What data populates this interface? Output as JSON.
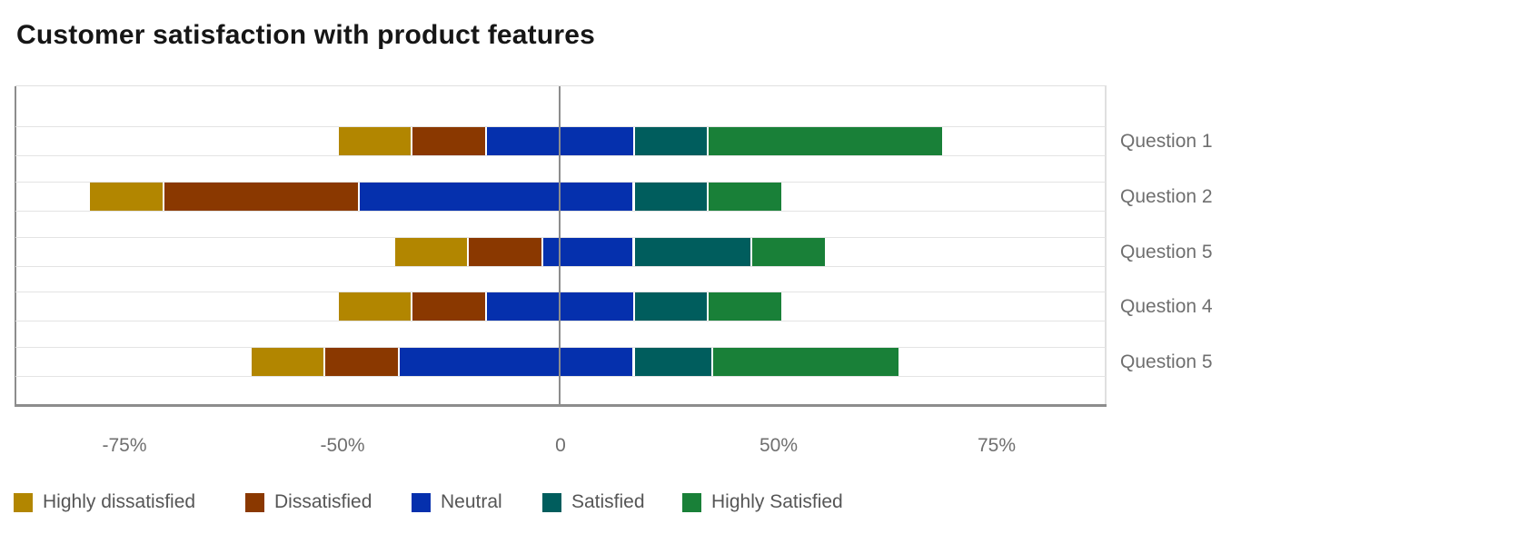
{
  "title": "Customer satisfaction with product features",
  "chart_data": {
    "type": "bar",
    "subtype": "horizontal_diverging_stacked",
    "title": "Customer satisfaction with product features",
    "unit": "percent",
    "categories": [
      {
        "label": "Highly dissatisfied",
        "color": "#b28600"
      },
      {
        "label": "Dissatisfied",
        "color": "#8a3800"
      },
      {
        "label": "Neutral",
        "color": "#0530ad"
      },
      {
        "label": "Satisfied",
        "color": "#005d5d"
      },
      {
        "label": "Highly Satisfied",
        "color": "#198038"
      }
    ],
    "rows": [
      {
        "label": "Question 1",
        "start": -51,
        "values": [
          17,
          17,
          34,
          17,
          54
        ]
      },
      {
        "label": "Question 2",
        "start": -108,
        "values": [
          17,
          45,
          63,
          17,
          17
        ]
      },
      {
        "label": "Question 5",
        "start": -38,
        "values": [
          17,
          17,
          21,
          27,
          17
        ]
      },
      {
        "label": "Question 4",
        "start": -51,
        "values": [
          17,
          17,
          34,
          17,
          17
        ]
      },
      {
        "label": "Question 5",
        "start": -71,
        "values": [
          17,
          17,
          54,
          18,
          43
        ]
      }
    ],
    "x_axis": {
      "tick_labels": [
        "-75%",
        "-50%",
        "0",
        "50%",
        "75%"
      ],
      "ticks_equally_spaced": true,
      "zero_reference_line": true
    },
    "legend_position": "bottom",
    "grid": "row-band-lines",
    "colors": {
      "title_text": "#161616",
      "axis_strong": "#8d8d8d",
      "axis_light": "#e0e0e0",
      "tick_text": "#6f6f6f",
      "row_label_text": "#6f6f6f",
      "legend_text": "#565656",
      "background": "#ffffff"
    }
  }
}
